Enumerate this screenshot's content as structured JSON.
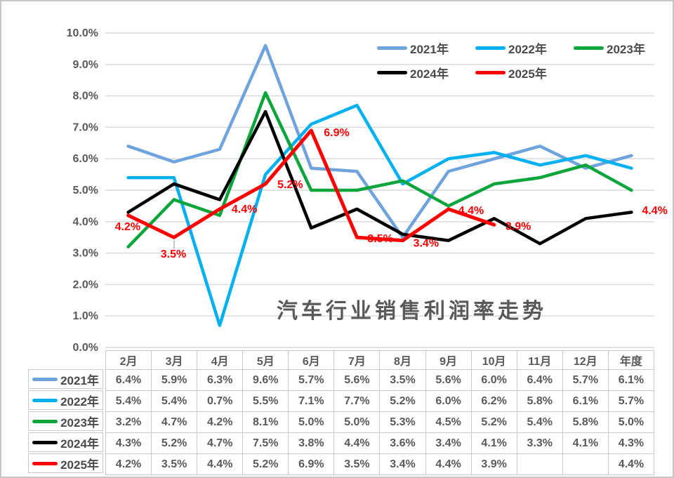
{
  "chart_data": {
    "type": "line",
    "title": "汽车行业销售利润率走势",
    "categories": [
      "2月",
      "3月",
      "4月",
      "5月",
      "6月",
      "7月",
      "8月",
      "9月",
      "10月",
      "11月",
      "12月",
      "年度"
    ],
    "y_axis": {
      "min": 0,
      "max": 10,
      "step": 1,
      "tick_labels": [
        "0.0%",
        "1.0%",
        "2.0%",
        "3.0%",
        "4.0%",
        "5.0%",
        "6.0%",
        "7.0%",
        "8.0%",
        "9.0%",
        "10.0%"
      ]
    },
    "grid": true,
    "gridline_color": "#d8d8d8",
    "legend_position": "top-right",
    "series": [
      {
        "name": "2021年",
        "color": "#6fa3dc",
        "values": [
          6.4,
          5.9,
          6.3,
          9.6,
          5.7,
          5.6,
          3.5,
          5.6,
          6.0,
          6.4,
          5.7,
          6.1
        ]
      },
      {
        "name": "2022年",
        "color": "#00b0f0",
        "values": [
          5.4,
          5.4,
          0.7,
          5.5,
          7.1,
          7.7,
          5.2,
          6.0,
          6.2,
          5.8,
          6.1,
          5.7
        ]
      },
      {
        "name": "2023年",
        "color": "#0ba53c",
        "values": [
          3.2,
          4.7,
          4.2,
          8.1,
          5.0,
          5.0,
          5.3,
          4.5,
          5.2,
          5.4,
          5.8,
          5.0
        ]
      },
      {
        "name": "2024年",
        "color": "#000000",
        "values": [
          4.3,
          5.2,
          4.7,
          7.5,
          3.8,
          4.4,
          3.6,
          3.4,
          4.1,
          3.3,
          4.1,
          4.3
        ]
      },
      {
        "name": "2025年",
        "color": "#ff0000",
        "values": [
          4.2,
          3.5,
          4.4,
          5.2,
          6.9,
          3.5,
          3.4,
          4.4,
          3.9,
          null,
          null,
          4.4
        ]
      }
    ],
    "data_labels": {
      "series": "2025年",
      "color": "#ff0000",
      "texts": [
        "4.2%",
        "3.5%",
        "4.4%",
        "5.2%",
        "6.9%",
        "3.5%",
        "3.4%",
        "4.4%",
        "3.9%",
        "",
        "",
        "4.4%"
      ]
    }
  },
  "table": {
    "columns": [
      "2月",
      "3月",
      "4月",
      "5月",
      "6月",
      "7月",
      "8月",
      "9月",
      "10月",
      "11月",
      "12月",
      "年度"
    ],
    "rows": [
      {
        "label": "2021年",
        "values": [
          "6.4%",
          "5.9%",
          "6.3%",
          "9.6%",
          "5.7%",
          "5.6%",
          "3.5%",
          "5.6%",
          "6.0%",
          "6.4%",
          "5.7%",
          "6.1%"
        ]
      },
      {
        "label": "2022年",
        "values": [
          "5.4%",
          "5.4%",
          "0.7%",
          "5.5%",
          "7.1%",
          "7.7%",
          "5.2%",
          "6.0%",
          "6.2%",
          "5.8%",
          "6.1%",
          "5.7%"
        ]
      },
      {
        "label": "2023年",
        "values": [
          "3.2%",
          "4.7%",
          "4.2%",
          "8.1%",
          "5.0%",
          "5.0%",
          "5.3%",
          "4.5%",
          "5.2%",
          "5.4%",
          "5.8%",
          "5.0%"
        ]
      },
      {
        "label": "2024年",
        "values": [
          "4.3%",
          "5.2%",
          "4.7%",
          "7.5%",
          "3.8%",
          "4.4%",
          "3.6%",
          "3.4%",
          "4.1%",
          "3.3%",
          "4.1%",
          "4.3%"
        ]
      },
      {
        "label": "2025年",
        "values": [
          "4.2%",
          "3.5%",
          "4.4%",
          "5.2%",
          "6.9%",
          "3.5%",
          "3.4%",
          "4.4%",
          "3.9%",
          "",
          "",
          "4.4%"
        ]
      }
    ]
  },
  "colors": {
    "axis_text": "#595959",
    "table_border": "#c9c9c9",
    "page_border": "#c6c6c6",
    "data_label": "#ff0000"
  }
}
